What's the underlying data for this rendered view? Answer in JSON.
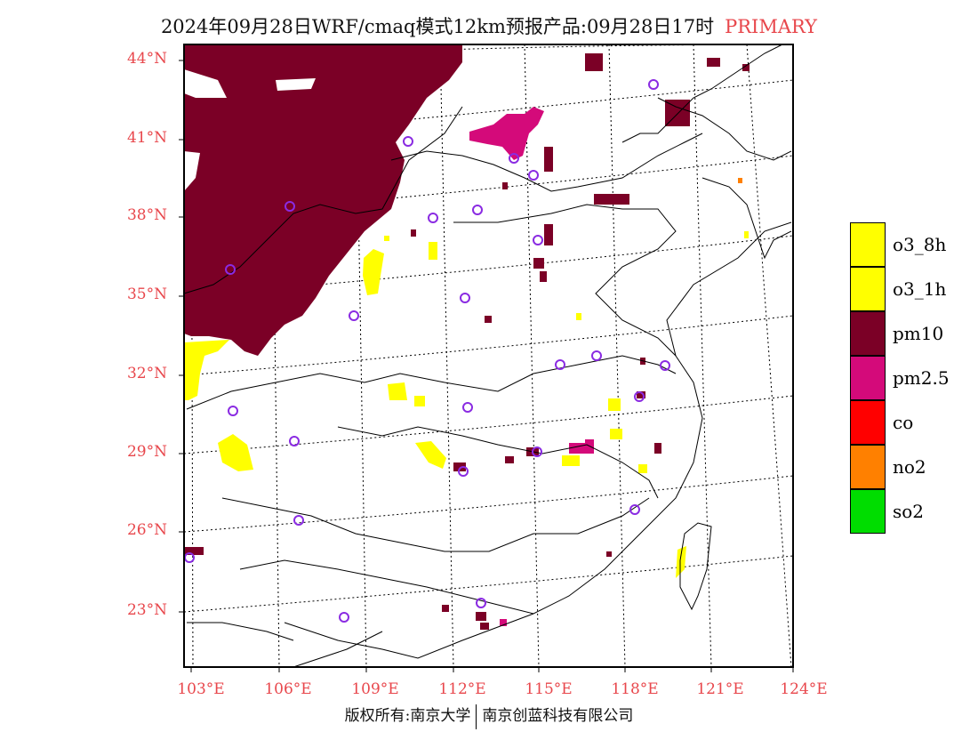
{
  "title": {
    "main": "2024年09月28日WRF/cmaq模式12km预报产品:09月28日17时",
    "tag": "PRIMARY"
  },
  "map": {
    "lon_labels": [
      "103°E",
      "106°E",
      "109°E",
      "112°E",
      "115°E",
      "118°E",
      "121°E",
      "124°E"
    ],
    "lat_labels": [
      "44°N",
      "41°N",
      "38°N",
      "35°N",
      "32°N",
      "29°N",
      "26°N",
      "23°N"
    ],
    "colors": {
      "pm10": "#7b0026",
      "pm25": "#d40a7a",
      "o3": "#ffff00",
      "no2": "#ff8000",
      "station_ring": "#8a2be2",
      "axis_labels": "#e8474c"
    }
  },
  "legend": [
    {
      "label": "o3_8h",
      "color": "#ffff00"
    },
    {
      "label": "o3_1h",
      "color": "#ffff00"
    },
    {
      "label": "pm10",
      "color": "#7b0026"
    },
    {
      "label": "pm2.5",
      "color": "#d40a7a"
    },
    {
      "label": "co",
      "color": "#ff0000"
    },
    {
      "label": "no2",
      "color": "#ff8000"
    },
    {
      "label": "so2",
      "color": "#00dd00"
    }
  ],
  "footer": {
    "left": "版权所有:南京大学",
    "right": "南京创蓝科技有限公司"
  }
}
